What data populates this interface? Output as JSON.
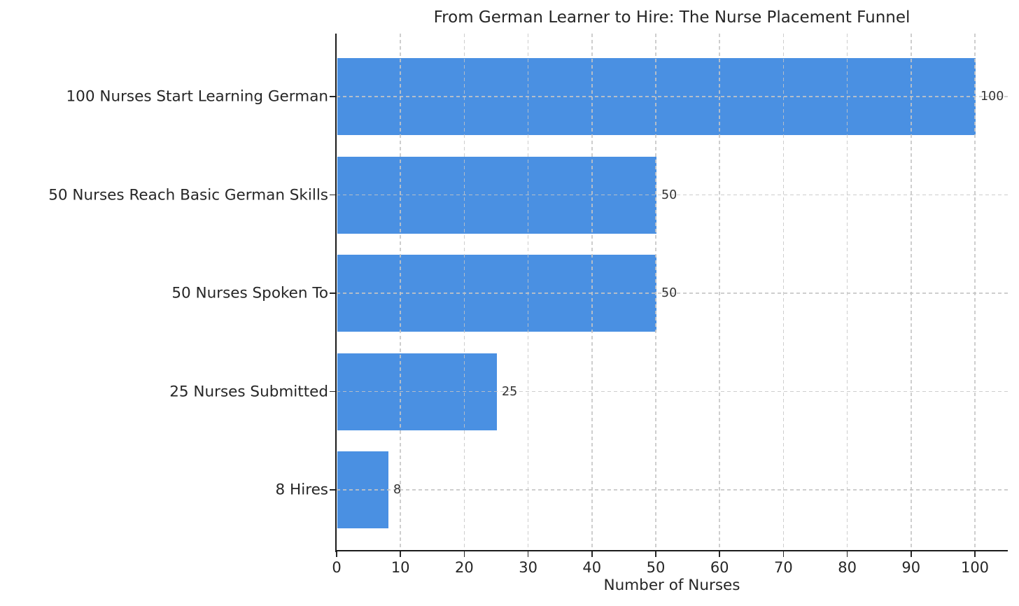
{
  "chart_data": {
    "type": "bar",
    "orientation": "horizontal",
    "title": "From German Learner to Hire: The Nurse Placement Funnel",
    "xlabel": "Number of Nurses",
    "ylabel": "",
    "categories": [
      "100 Nurses Start Learning German",
      "50 Nurses Reach Basic German Skills",
      "50 Nurses Spoken To",
      "25 Nurses Submitted",
      "8 Hires"
    ],
    "values": [
      100,
      50,
      50,
      25,
      8
    ],
    "value_labels": [
      "100",
      "50",
      "50",
      "25",
      "8"
    ],
    "xticks": [
      0,
      10,
      20,
      30,
      40,
      50,
      60,
      70,
      80,
      90,
      100
    ],
    "xlim": [
      0,
      105
    ],
    "grid": true,
    "grid_style": "dashed",
    "legend": "none",
    "colors": {
      "bar": "#4a90e2",
      "grid": "#c5c5c5",
      "spine": "#1a1a1a",
      "text": "#262626",
      "value_label": "#333333",
      "background": "#ffffff"
    }
  }
}
